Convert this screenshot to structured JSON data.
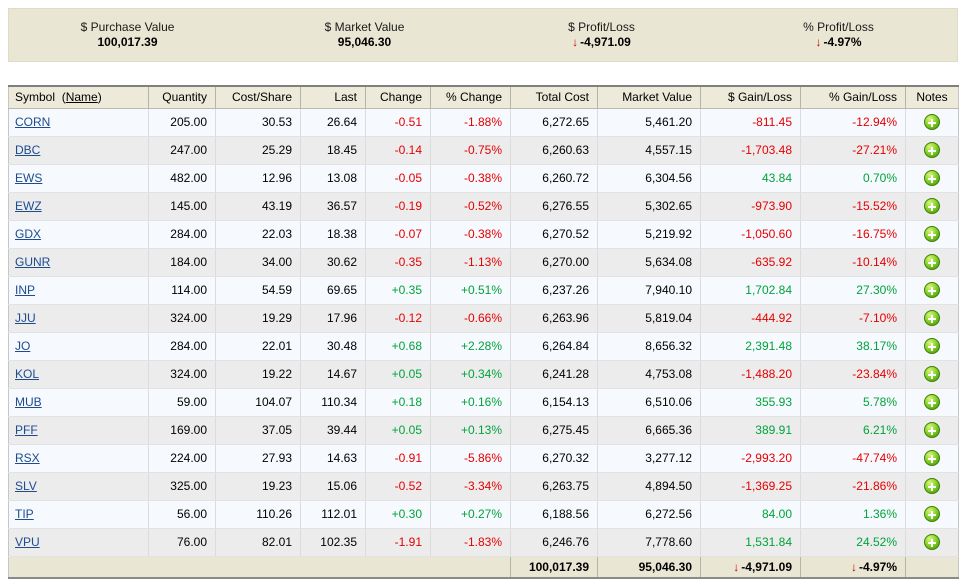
{
  "summary": {
    "arrow_char": "↓",
    "items": [
      {
        "label": "$ Purchase Value",
        "value": "100,017.39",
        "negative": false
      },
      {
        "label": "$ Market Value",
        "value": "95,046.30",
        "negative": false
      },
      {
        "label": "$ Profit/Loss",
        "value": "-4,971.09",
        "negative": true
      },
      {
        "label": "% Profit/Loss",
        "value": "-4.97%",
        "negative": true
      }
    ]
  },
  "table": {
    "header": {
      "symbol": "Symbol",
      "paren_open": "(",
      "name_toggle": "Name",
      "paren_close": ")",
      "quantity": "Quantity",
      "cost_share": "Cost/Share",
      "last": "Last",
      "change": "Change",
      "pct_change": "% Change",
      "total_cost": "Total Cost",
      "market_value": "Market Value",
      "gain_loss": "$ Gain/Loss",
      "pct_gain_loss": "% Gain/Loss",
      "notes": "Notes"
    },
    "rows": [
      {
        "symbol": "CORN",
        "quantity": "205.00",
        "cost_share": "30.53",
        "last": "26.64",
        "change": "-0.51",
        "pct_change": "-1.88%",
        "total_cost": "6,272.65",
        "market_value": "5,461.20",
        "gain_loss": "-811.45",
        "pct_gain_loss": "-12.94%"
      },
      {
        "symbol": "DBC",
        "quantity": "247.00",
        "cost_share": "25.29",
        "last": "18.45",
        "change": "-0.14",
        "pct_change": "-0.75%",
        "total_cost": "6,260.63",
        "market_value": "4,557.15",
        "gain_loss": "-1,703.48",
        "pct_gain_loss": "-27.21%"
      },
      {
        "symbol": "EWS",
        "quantity": "482.00",
        "cost_share": "12.96",
        "last": "13.08",
        "change": "-0.05",
        "pct_change": "-0.38%",
        "total_cost": "6,260.72",
        "market_value": "6,304.56",
        "gain_loss": "43.84",
        "pct_gain_loss": "0.70%"
      },
      {
        "symbol": "EWZ",
        "quantity": "145.00",
        "cost_share": "43.19",
        "last": "36.57",
        "change": "-0.19",
        "pct_change": "-0.52%",
        "total_cost": "6,276.55",
        "market_value": "5,302.65",
        "gain_loss": "-973.90",
        "pct_gain_loss": "-15.52%"
      },
      {
        "symbol": "GDX",
        "quantity": "284.00",
        "cost_share": "22.03",
        "last": "18.38",
        "change": "-0.07",
        "pct_change": "-0.38%",
        "total_cost": "6,270.52",
        "market_value": "5,219.92",
        "gain_loss": "-1,050.60",
        "pct_gain_loss": "-16.75%"
      },
      {
        "symbol": "GUNR",
        "quantity": "184.00",
        "cost_share": "34.00",
        "last": "30.62",
        "change": "-0.35",
        "pct_change": "-1.13%",
        "total_cost": "6,270.00",
        "market_value": "5,634.08",
        "gain_loss": "-635.92",
        "pct_gain_loss": "-10.14%"
      },
      {
        "symbol": "INP",
        "quantity": "114.00",
        "cost_share": "54.59",
        "last": "69.65",
        "change": "+0.35",
        "pct_change": "+0.51%",
        "total_cost": "6,237.26",
        "market_value": "7,940.10",
        "gain_loss": "1,702.84",
        "pct_gain_loss": "27.30%"
      },
      {
        "symbol": "JJU",
        "quantity": "324.00",
        "cost_share": "19.29",
        "last": "17.96",
        "change": "-0.12",
        "pct_change": "-0.66%",
        "total_cost": "6,263.96",
        "market_value": "5,819.04",
        "gain_loss": "-444.92",
        "pct_gain_loss": "-7.10%"
      },
      {
        "symbol": "JO",
        "quantity": "284.00",
        "cost_share": "22.01",
        "last": "30.48",
        "change": "+0.68",
        "pct_change": "+2.28%",
        "total_cost": "6,264.84",
        "market_value": "8,656.32",
        "gain_loss": "2,391.48",
        "pct_gain_loss": "38.17%"
      },
      {
        "symbol": "KOL",
        "quantity": "324.00",
        "cost_share": "19.22",
        "last": "14.67",
        "change": "+0.05",
        "pct_change": "+0.34%",
        "total_cost": "6,241.28",
        "market_value": "4,753.08",
        "gain_loss": "-1,488.20",
        "pct_gain_loss": "-23.84%"
      },
      {
        "symbol": "MUB",
        "quantity": "59.00",
        "cost_share": "104.07",
        "last": "110.34",
        "change": "+0.18",
        "pct_change": "+0.16%",
        "total_cost": "6,154.13",
        "market_value": "6,510.06",
        "gain_loss": "355.93",
        "pct_gain_loss": "5.78%"
      },
      {
        "symbol": "PFF",
        "quantity": "169.00",
        "cost_share": "37.05",
        "last": "39.44",
        "change": "+0.05",
        "pct_change": "+0.13%",
        "total_cost": "6,275.45",
        "market_value": "6,665.36",
        "gain_loss": "389.91",
        "pct_gain_loss": "6.21%"
      },
      {
        "symbol": "RSX",
        "quantity": "224.00",
        "cost_share": "27.93",
        "last": "14.63",
        "change": "-0.91",
        "pct_change": "-5.86%",
        "total_cost": "6,270.32",
        "market_value": "3,277.12",
        "gain_loss": "-2,993.20",
        "pct_gain_loss": "-47.74%"
      },
      {
        "symbol": "SLV",
        "quantity": "325.00",
        "cost_share": "19.23",
        "last": "15.06",
        "change": "-0.52",
        "pct_change": "-3.34%",
        "total_cost": "6,263.75",
        "market_value": "4,894.50",
        "gain_loss": "-1,369.25",
        "pct_gain_loss": "-21.86%"
      },
      {
        "symbol": "TIP",
        "quantity": "56.00",
        "cost_share": "110.26",
        "last": "112.01",
        "change": "+0.30",
        "pct_change": "+0.27%",
        "total_cost": "6,188.56",
        "market_value": "6,272.56",
        "gain_loss": "84.00",
        "pct_gain_loss": "1.36%"
      },
      {
        "symbol": "VPU",
        "quantity": "76.00",
        "cost_share": "82.01",
        "last": "102.35",
        "change": "-1.91",
        "pct_change": "-1.83%",
        "total_cost": "6,246.76",
        "market_value": "7,778.60",
        "gain_loss": "1,531.84",
        "pct_gain_loss": "24.52%"
      }
    ],
    "totals": {
      "total_cost": "100,017.39",
      "market_value": "95,046.30",
      "gain_loss": "-4,971.09",
      "pct_gain_loss": "-4.97%"
    }
  },
  "colors": {
    "positive": "#00a33c",
    "negative": "#e60000",
    "arrow_red": "#cc0000",
    "link_blue": "#1d4b8f",
    "beige": "#e9e6d3"
  }
}
